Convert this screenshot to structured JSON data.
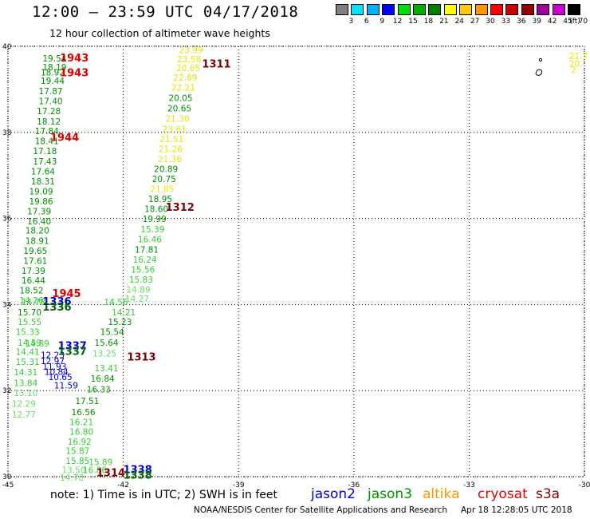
{
  "header": {
    "title": "12:00 – 23:59 UTC 04/17/2018",
    "subtitle": "12 hour collection of altimeter wave heights"
  },
  "legend": {
    "colors": [
      "#808080",
      "#00e5ff",
      "#00b0ff",
      "#0000ff",
      "#00e000",
      "#00b000",
      "#008000",
      "#ffff00",
      "#ffc800",
      "#ff9600",
      "#ff0000",
      "#c80000",
      "#960000",
      "#a000a0",
      "#d000d0",
      "#000000"
    ],
    "labels": [
      "3",
      "6",
      "9",
      "12",
      "15",
      "18",
      "21",
      "24",
      "27",
      "30",
      "33",
      "36",
      "39",
      "42",
      "45",
      "70",
      "(ft)"
    ]
  },
  "chart_data": {
    "type": "scatter",
    "title": "12:00 – 23:59 UTC 04/17/2018",
    "subtitle": "12 hour collection of altimeter wave heights",
    "xlim": [
      -45,
      -30
    ],
    "ylim": [
      30,
      40
    ],
    "x_ticks": [
      "-45",
      "-42",
      "-39",
      "-36",
      "-33",
      "-30"
    ],
    "y_ticks": [
      "40",
      "38",
      "36",
      "34",
      "32",
      "30"
    ],
    "time_labels": [
      {
        "text": "1943",
        "lon": -43.65,
        "lat": 39.74,
        "color": "#dd0000"
      },
      {
        "text": "1943",
        "lon": -43.65,
        "lat": 39.4,
        "color": "#dd0000"
      },
      {
        "text": "1944",
        "lon": -43.9,
        "lat": 37.89,
        "color": "#dd0000"
      },
      {
        "text": "1945",
        "lon": -43.85,
        "lat": 34.27,
        "color": "#dd0000"
      },
      {
        "text": "1311",
        "lon": -39.95,
        "lat": 39.6,
        "color": "#800000"
      },
      {
        "text": "1312",
        "lon": -40.9,
        "lat": 36.27,
        "color": "#800000"
      },
      {
        "text": "1313",
        "lon": -41.9,
        "lat": 32.79,
        "color": "#800000"
      },
      {
        "text": "1314",
        "lon": -42.7,
        "lat": 30.1,
        "color": "#800000"
      },
      {
        "text": "1336",
        "lon": -44.1,
        "lat": 34.08,
        "color": "#0000cc"
      },
      {
        "text": "1336",
        "lon": -44.1,
        "lat": 33.95,
        "color": "#006400"
      },
      {
        "text": "1337",
        "lon": -43.7,
        "lat": 33.05,
        "color": "#0000cc"
      },
      {
        "text": "1337",
        "lon": -43.7,
        "lat": 32.92,
        "color": "#006400"
      },
      {
        "text": "1338",
        "lon": -42.0,
        "lat": 30.18,
        "color": "#0000cc"
      },
      {
        "text": "1338",
        "lon": -42.0,
        "lat": 30.05,
        "color": "#006400"
      }
    ],
    "series": [
      {
        "name": "jason3",
        "points": [
          {
            "lon": -44.1,
            "lat": 39.72,
            "v": "19.54",
            "c": "#009000"
          },
          {
            "lon": -44.1,
            "lat": 39.52,
            "v": "18.19",
            "c": "#009000"
          },
          {
            "lon": -44.15,
            "lat": 39.4,
            "v": "18.92",
            "c": "#009000"
          },
          {
            "lon": -44.15,
            "lat": 39.2,
            "v": "19.44",
            "c": "#009000"
          },
          {
            "lon": -44.2,
            "lat": 38.96,
            "v": "17.87",
            "c": "#009000"
          },
          {
            "lon": -44.2,
            "lat": 38.73,
            "v": "17.40",
            "c": "#009000"
          },
          {
            "lon": -44.25,
            "lat": 38.5,
            "v": "17.28",
            "c": "#009000"
          },
          {
            "lon": -44.25,
            "lat": 38.26,
            "v": "18.12",
            "c": "#009000"
          },
          {
            "lon": -44.3,
            "lat": 38.03,
            "v": "17.84",
            "c": "#009000"
          },
          {
            "lon": -44.3,
            "lat": 37.8,
            "v": "18.41",
            "c": "#009000"
          },
          {
            "lon": -44.35,
            "lat": 37.57,
            "v": "17.18",
            "c": "#009000"
          },
          {
            "lon": -44.35,
            "lat": 37.33,
            "v": "17.43",
            "c": "#009000"
          },
          {
            "lon": -44.4,
            "lat": 37.1,
            "v": "17.64",
            "c": "#009000"
          },
          {
            "lon": -44.4,
            "lat": 36.86,
            "v": "18.31",
            "c": "#009000"
          },
          {
            "lon": -44.45,
            "lat": 36.63,
            "v": "19.09",
            "c": "#009000"
          },
          {
            "lon": -44.45,
            "lat": 36.4,
            "v": "19.86",
            "c": "#009000"
          },
          {
            "lon": -44.5,
            "lat": 36.17,
            "v": "17.39",
            "c": "#009000"
          },
          {
            "lon": -44.5,
            "lat": 35.94,
            "v": "16.40",
            "c": "#009000"
          },
          {
            "lon": -44.55,
            "lat": 35.72,
            "v": "18.20",
            "c": "#009000"
          },
          {
            "lon": -44.55,
            "lat": 35.48,
            "v": "18.91",
            "c": "#009000"
          },
          {
            "lon": -44.6,
            "lat": 35.25,
            "v": "19.65",
            "c": "#009000"
          },
          {
            "lon": -44.6,
            "lat": 35.02,
            "v": "17.61",
            "c": "#009000"
          },
          {
            "lon": -44.65,
            "lat": 34.79,
            "v": "17.39",
            "c": "#009000"
          },
          {
            "lon": -44.65,
            "lat": 34.56,
            "v": "16.44",
            "c": "#009000"
          },
          {
            "lon": -44.7,
            "lat": 34.33,
            "v": "18.52",
            "c": "#009000"
          },
          {
            "lon": -44.7,
            "lat": 34.1,
            "v": "14.26",
            "c": "#33cc33"
          },
          {
            "lon": -44.65,
            "lat": 34.06,
            "v": "14.78",
            "c": "#33cc33"
          },
          {
            "lon": -44.75,
            "lat": 33.82,
            "v": "15.70",
            "c": "#009000"
          },
          {
            "lon": -44.75,
            "lat": 33.6,
            "v": "15.55",
            "c": "#33cc33"
          },
          {
            "lon": -44.8,
            "lat": 33.37,
            "v": "15.33",
            "c": "#33cc33"
          },
          {
            "lon": -44.75,
            "lat": 33.12,
            "v": "14.59",
            "c": "#33cc33"
          },
          {
            "lon": -44.55,
            "lat": 33.1,
            "v": "14.89",
            "c": "#33cc33"
          },
          {
            "lon": -44.8,
            "lat": 32.9,
            "v": "14.41",
            "c": "#33cc33"
          },
          {
            "lon": -44.8,
            "lat": 32.67,
            "v": "15.31",
            "c": "#33cc33"
          },
          {
            "lon": -44.85,
            "lat": 32.43,
            "v": "14.31",
            "c": "#33cc33"
          },
          {
            "lon": -44.85,
            "lat": 32.18,
            "v": "13.84",
            "c": "#33cc33"
          },
          {
            "lon": -44.85,
            "lat": 31.95,
            "v": "13.10",
            "c": "#66dd66"
          },
          {
            "lon": -44.9,
            "lat": 31.7,
            "v": "12.29",
            "c": "#66dd66"
          },
          {
            "lon": -44.9,
            "lat": 31.45,
            "v": "12.77",
            "c": "#66dd66"
          },
          {
            "lon": -42.3,
            "lat": 33.82,
            "v": "14.21",
            "c": "#33cc33"
          },
          {
            "lon": -42.5,
            "lat": 34.06,
            "v": "14.56",
            "c": "#33cc33"
          },
          {
            "lon": -42.4,
            "lat": 33.6,
            "v": "15.23",
            "c": "#009000"
          },
          {
            "lon": -42.6,
            "lat": 33.37,
            "v": "15.54",
            "c": "#009000"
          },
          {
            "lon": -42.75,
            "lat": 33.12,
            "v": "15.64",
            "c": "#009000"
          },
          {
            "lon": -42.8,
            "lat": 32.87,
            "v": "13.25",
            "c": "#66dd66"
          },
          {
            "lon": -42.75,
            "lat": 32.52,
            "v": "13.41",
            "c": "#33cc33"
          },
          {
            "lon": -42.85,
            "lat": 32.28,
            "v": "16.84",
            "c": "#009000"
          },
          {
            "lon": -42.95,
            "lat": 32.03,
            "v": "16.33",
            "c": "#009000"
          },
          {
            "lon": -43.25,
            "lat": 31.76,
            "v": "17.51",
            "c": "#009000"
          },
          {
            "lon": -43.35,
            "lat": 31.5,
            "v": "16.56",
            "c": "#009000"
          },
          {
            "lon": -43.4,
            "lat": 31.27,
            "v": "16.21",
            "c": "#33cc33"
          },
          {
            "lon": -43.4,
            "lat": 31.05,
            "v": "16.80",
            "c": "#33cc33"
          },
          {
            "lon": -43.45,
            "lat": 30.82,
            "v": "16.92",
            "c": "#33cc33"
          },
          {
            "lon": -43.5,
            "lat": 30.6,
            "v": "15.87",
            "c": "#33cc33"
          },
          {
            "lon": -43.5,
            "lat": 30.37,
            "v": "15.85",
            "c": "#33cc33"
          },
          {
            "lon": -43.6,
            "lat": 30.16,
            "v": "13.50",
            "c": "#66dd66"
          },
          {
            "lon": -43.65,
            "lat": 29.98,
            "v": "14.78",
            "c": "#66dd66"
          },
          {
            "lon": -43.05,
            "lat": 30.16,
            "v": "16.86",
            "c": "#33cc33"
          },
          {
            "lon": -42.9,
            "lat": 30.34,
            "v": "15.89",
            "c": "#33cc33"
          }
        ]
      },
      {
        "name": "jason2",
        "points": [
          {
            "lon": -44.15,
            "lat": 32.83,
            "v": "12.23",
            "c": "#0000cc"
          },
          {
            "lon": -44.15,
            "lat": 32.69,
            "v": "12.97",
            "c": "#0000cc"
          },
          {
            "lon": -44.1,
            "lat": 32.56,
            "v": "11.93",
            "c": "#0000cc"
          },
          {
            "lon": -44.05,
            "lat": 32.44,
            "v": "10.84",
            "c": "#0000cc"
          },
          {
            "lon": -43.95,
            "lat": 32.32,
            "v": "10.65",
            "c": "#0000cc"
          },
          {
            "lon": -43.8,
            "lat": 32.12,
            "v": "11.59",
            "c": "#0000cc"
          }
        ]
      },
      {
        "name": "cryosat",
        "points": [
          {
            "lon": -40.55,
            "lat": 39.92,
            "v": "23.99",
            "c": "#e6e600"
          },
          {
            "lon": -40.6,
            "lat": 39.7,
            "v": "23.58",
            "c": "#e6e600"
          },
          {
            "lon": -40.62,
            "lat": 39.5,
            "v": "20.65",
            "c": "#e6e600"
          },
          {
            "lon": -40.7,
            "lat": 39.28,
            "v": "22.89",
            "c": "#e6e600"
          },
          {
            "lon": -40.75,
            "lat": 39.04,
            "v": "22.21",
            "c": "#e6e600"
          },
          {
            "lon": -40.82,
            "lat": 38.8,
            "v": "20.05",
            "c": "#009000"
          },
          {
            "lon": -40.85,
            "lat": 38.56,
            "v": "20.65",
            "c": "#009000"
          },
          {
            "lon": -40.9,
            "lat": 38.32,
            "v": "21.30",
            "c": "#e6e600"
          },
          {
            "lon": -40.98,
            "lat": 38.08,
            "v": "23.61",
            "c": "#e6e600"
          },
          {
            "lon": -41.05,
            "lat": 37.85,
            "v": "21.51",
            "c": "#e6e600"
          },
          {
            "lon": -41.08,
            "lat": 37.62,
            "v": "21.26",
            "c": "#e6e600"
          },
          {
            "lon": -41.1,
            "lat": 37.38,
            "v": "21.36",
            "c": "#e6e600"
          },
          {
            "lon": -41.2,
            "lat": 37.15,
            "v": "20.89",
            "c": "#009000"
          },
          {
            "lon": -41.25,
            "lat": 36.92,
            "v": "20.75",
            "c": "#009000"
          },
          {
            "lon": -41.3,
            "lat": 36.69,
            "v": "21.85",
            "c": "#e6e600"
          },
          {
            "lon": -41.35,
            "lat": 36.46,
            "v": "18.95",
            "c": "#009000"
          },
          {
            "lon": -41.45,
            "lat": 36.22,
            "v": "18.60",
            "c": "#009000"
          },
          {
            "lon": -41.5,
            "lat": 35.99,
            "v": "19.99",
            "c": "#009000"
          },
          {
            "lon": -41.55,
            "lat": 35.75,
            "v": "15.39",
            "c": "#33cc33"
          },
          {
            "lon": -41.62,
            "lat": 35.52,
            "v": "16.46",
            "c": "#33cc33"
          },
          {
            "lon": -41.7,
            "lat": 35.28,
            "v": "17.81",
            "c": "#009000"
          },
          {
            "lon": -41.75,
            "lat": 35.05,
            "v": "16.24",
            "c": "#33cc33"
          },
          {
            "lon": -41.8,
            "lat": 34.81,
            "v": "15.56",
            "c": "#33cc33"
          },
          {
            "lon": -41.85,
            "lat": 34.58,
            "v": "15.83",
            "c": "#33cc33"
          },
          {
            "lon": -41.92,
            "lat": 34.35,
            "v": "14.89",
            "c": "#66dd66"
          },
          {
            "lon": -41.95,
            "lat": 34.14,
            "v": "14.27",
            "c": "#66dd66"
          }
        ]
      },
      {
        "name": "altika",
        "points": [
          {
            "lon": -30.4,
            "lat": 39.78,
            "v": "21.7",
            "c": "#e6e600"
          },
          {
            "lon": -30.4,
            "lat": 39.6,
            "v": "20.",
            "c": "#e6e600"
          },
          {
            "lon": -30.35,
            "lat": 39.45,
            "v": "2",
            "c": "#e6e600"
          }
        ]
      }
    ]
  },
  "footer": {
    "note": "note:  1) Time is in UTC;  2) SWH is in feet",
    "satellites": [
      {
        "label": "jason2",
        "color": "#0000cc"
      },
      {
        "label": "jason3",
        "color": "#009000"
      },
      {
        "label": "altika",
        "color": "#ff9600"
      },
      {
        "label": "cryosat",
        "color": "#dd0000"
      },
      {
        "label": "s3a",
        "color": "#800000"
      }
    ],
    "credit": "NOAA/NESDIS Center for Satellite Applications and Research",
    "timestamp": "Apr 18 12:28:05 UTC 2018"
  }
}
